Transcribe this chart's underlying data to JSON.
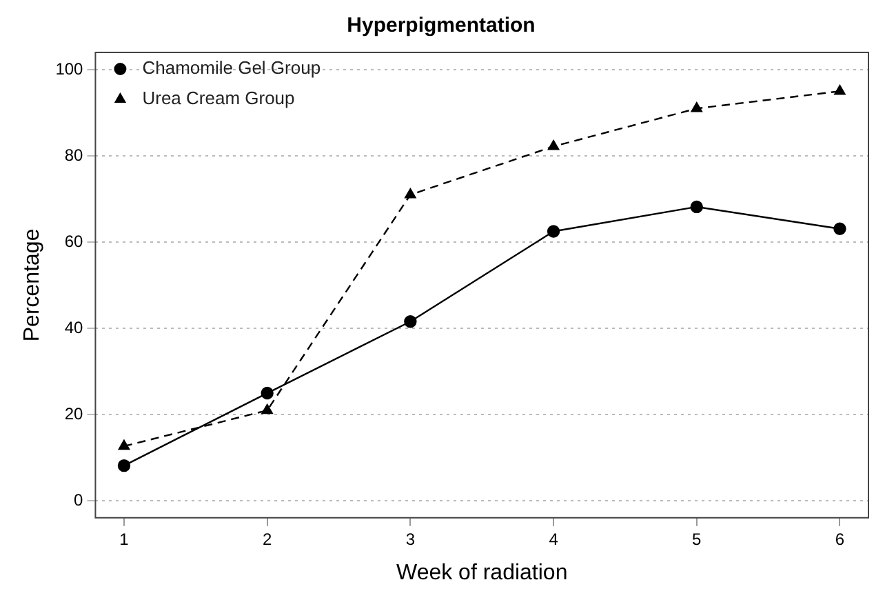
{
  "chart_data": {
    "type": "line",
    "title": "Hyperpigmentation",
    "xlabel": "Week of radiation",
    "ylabel": "Percentage",
    "x": [
      1,
      2,
      3,
      4,
      5,
      6
    ],
    "xlim": [
      0.8,
      6.2
    ],
    "xticks": [
      1,
      2,
      3,
      4,
      5,
      6
    ],
    "ylim": [
      -3.9,
      104
    ],
    "yticks": [
      0,
      20,
      40,
      60,
      80,
      100
    ],
    "grid": "y",
    "legend": "top left",
    "series": [
      {
        "name": "Chamomile Gel Group",
        "color": "#000000",
        "marker": "circle",
        "line_style": "solid",
        "values": [
          8.2,
          25,
          41.6,
          62.5,
          68.2,
          63.1
        ]
      },
      {
        "name": "Urea Cream Group",
        "color": "#000000",
        "marker": "triangle",
        "line_style": "dashed",
        "values": [
          12.7,
          21,
          71,
          82.2,
          91,
          95
        ]
      }
    ]
  }
}
